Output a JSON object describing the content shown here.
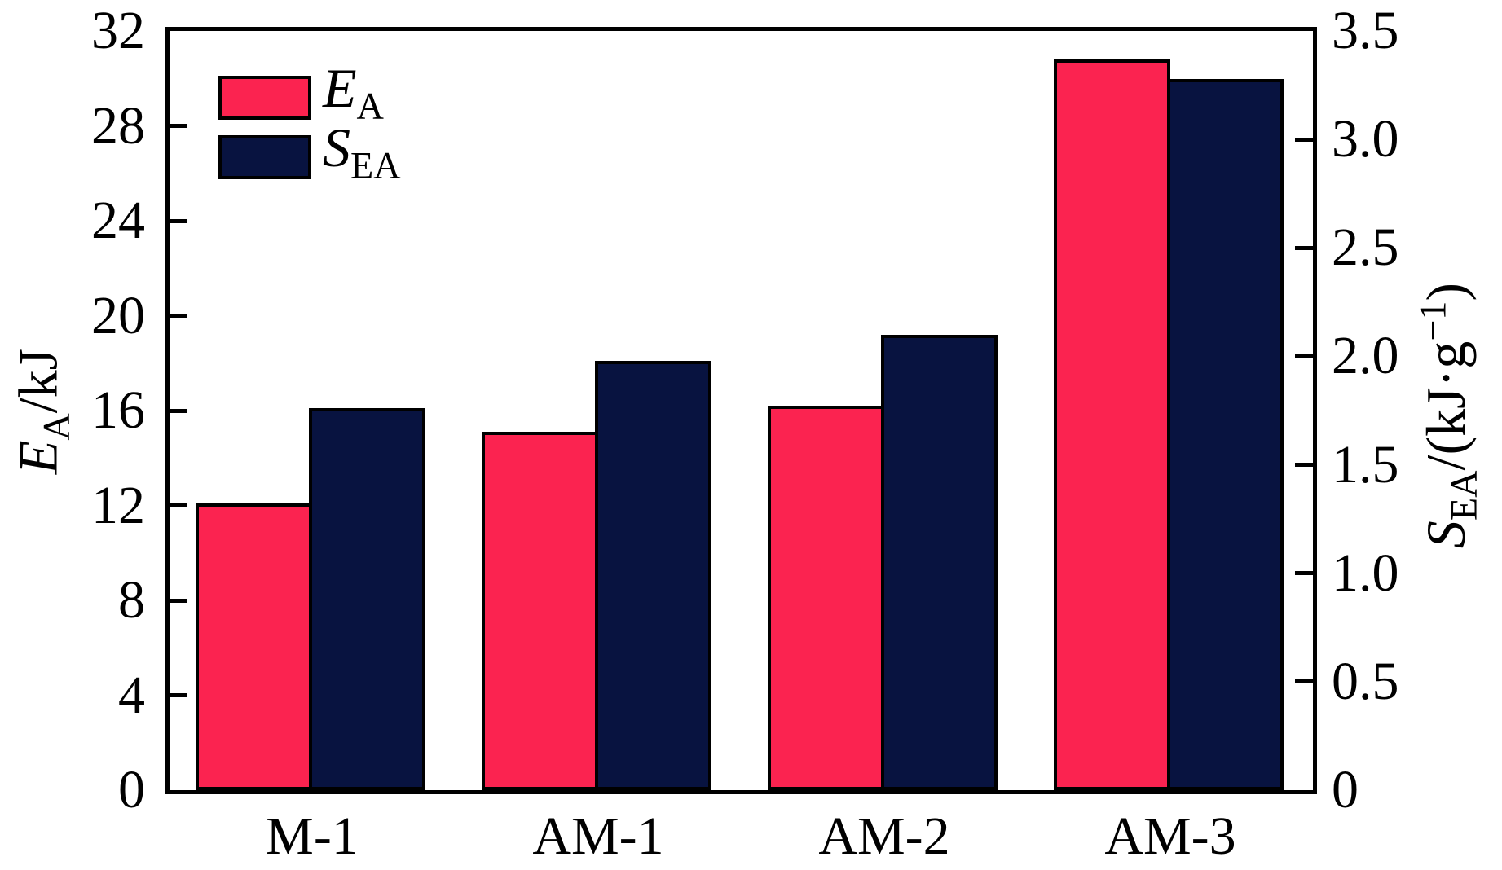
{
  "chart_data": {
    "type": "bar",
    "title": "",
    "categories": [
      "M-1",
      "AM-1",
      "AM-2",
      "AM-3"
    ],
    "series": [
      {
        "name": "EA",
        "axis": "left",
        "color": "#fb2350",
        "values": [
          12.1,
          15.1,
          16.2,
          30.8
        ]
      },
      {
        "name": "SEA",
        "axis": "right",
        "color": "#081340",
        "values": [
          1.76,
          1.98,
          2.1,
          3.28
        ]
      }
    ],
    "left_axis": {
      "label": "EA/kJ",
      "min": 0,
      "max": 32,
      "tick_values": [
        0,
        4,
        8,
        12,
        16,
        20,
        24,
        28,
        32
      ],
      "tick_labels": [
        "0",
        "4",
        "8",
        "12",
        "16",
        "20",
        "24",
        "28",
        "32"
      ]
    },
    "right_axis": {
      "label": "SEA/(kJ·g−1)",
      "min": 0,
      "max": 3.5,
      "tick_values": [
        0,
        0.5,
        1,
        1.5,
        2,
        2.5,
        3,
        3.5
      ],
      "tick_labels": [
        "0",
        "0.5",
        "1.0",
        "1.5",
        "2.0",
        "2.5",
        "3.0",
        "3.5"
      ]
    },
    "grid": false,
    "legend_position": "top-left",
    "frame": "full-box",
    "tick_direction": "in"
  },
  "axes": {
    "left": {
      "title": {
        "var": "E",
        "sub": "A",
        "rest": "/kJ"
      }
    },
    "right": {
      "title": {
        "var": "S",
        "sub": "EA",
        "pre": "/(kJ·g",
        "sup": "−1",
        "post": ")"
      }
    }
  },
  "legend": {
    "items": [
      {
        "var": "E",
        "sub": "A",
        "color": "#fb2350"
      },
      {
        "var": "S",
        "sub": "EA",
        "color": "#081340"
      }
    ]
  },
  "colors": {
    "ea_bar": "#fb2350",
    "sea_bar": "#081340",
    "frame": "#000000",
    "background": "#ffffff"
  }
}
